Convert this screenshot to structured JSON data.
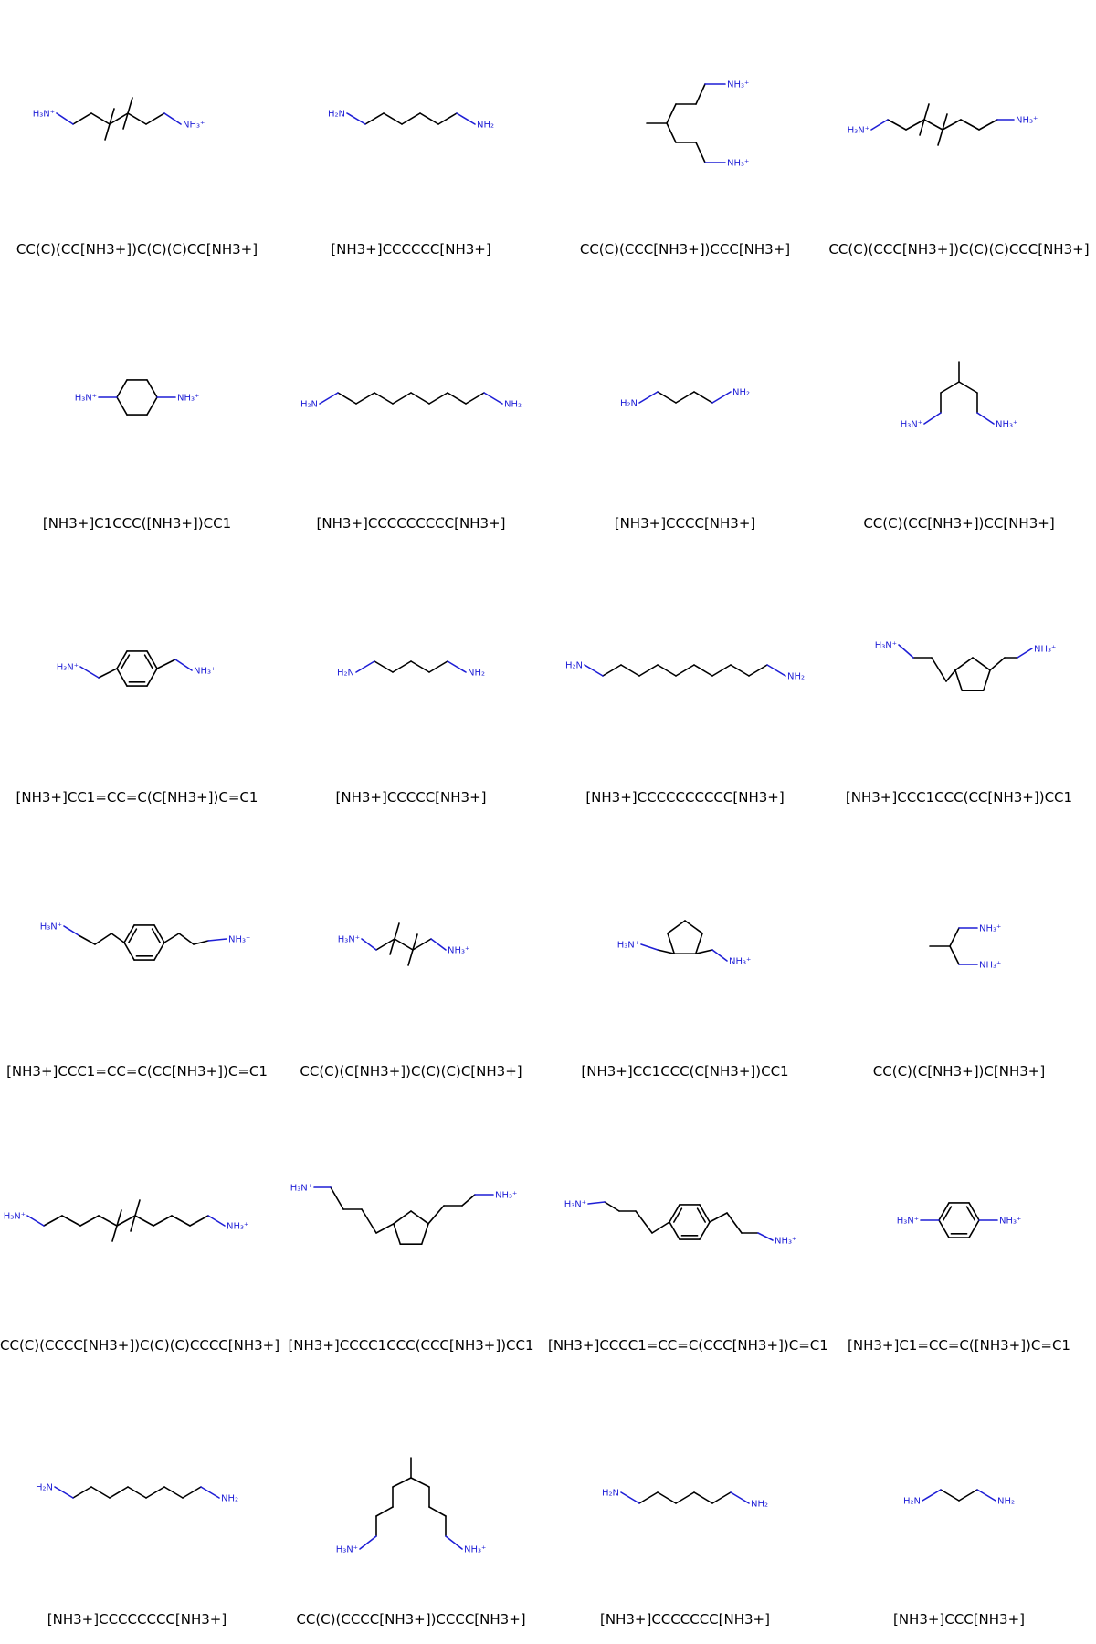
{
  "colors": {
    "nitrogen": "#1f1fd6",
    "bond": "#000000",
    "background": "#ffffff"
  },
  "molecules": [
    {
      "smiles": "CC(C)(CC[NH3+])C(C)(C)CC[NH3+]"
    },
    {
      "smiles": "[NH3+]CCCCCC[NH3+]"
    },
    {
      "smiles": "CC(C)(CCC[NH3+])CCC[NH3+]"
    },
    {
      "smiles": "CC(C)(CCC[NH3+])C(C)(C)CCC[NH3+]"
    },
    {
      "smiles": "[NH3+]C1CCC([NH3+])CC1"
    },
    {
      "smiles": "[NH3+]CCCCCCCCC[NH3+]"
    },
    {
      "smiles": "[NH3+]CCCC[NH3+]"
    },
    {
      "smiles": "CC(C)(CC[NH3+])CC[NH3+]"
    },
    {
      "smiles": "[NH3+]CC1=CC=C(C[NH3+])C=C1"
    },
    {
      "smiles": "[NH3+]CCCCC[NH3+]"
    },
    {
      "smiles": "[NH3+]CCCCCCCCCC[NH3+]"
    },
    {
      "smiles": "[NH3+]CCC1CCC(CC[NH3+])CC1"
    },
    {
      "smiles": "[NH3+]CCC1=CC=C(CC[NH3+])C=C1"
    },
    {
      "smiles": "CC(C)(C[NH3+])C(C)(C)C[NH3+]"
    },
    {
      "smiles": "[NH3+]CC1CCC(C[NH3+])CC1"
    },
    {
      "smiles": "CC(C)(C[NH3+])C[NH3+]"
    },
    {
      "smiles": "CC(C)(CCCC[NH3+])C(C)(C)CCCC[NH3+]"
    },
    {
      "smiles": "[NH3+]CCCC1CCC(CCC[NH3+])CC1"
    },
    {
      "smiles": "[NH3+]CCCC1=CC=C(CCC[NH3+])C=C1"
    },
    {
      "smiles": "[NH3+]C1=CC=C([NH3+])C=C1"
    },
    {
      "smiles": "[NH3+]CCCCCCCC[NH3+]"
    },
    {
      "smiles": "CC(C)(CCCC[NH3+])CCCC[NH3+]"
    },
    {
      "smiles": "[NH3+]CCCCCCC[NH3+]"
    },
    {
      "smiles": "[NH3+]CCC[NH3+]"
    }
  ]
}
